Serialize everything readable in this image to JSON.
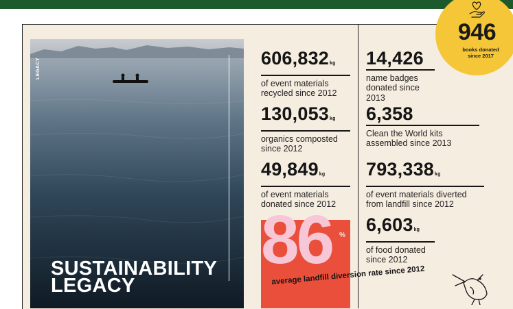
{
  "photo": {
    "side_label": "LEGACY",
    "title_line1": "SUSTAINABILITY",
    "title_line2": "LEGACY"
  },
  "stats_left": [
    {
      "number": "606,832",
      "unit": "kg",
      "desc": [
        "of event materials",
        "recycled since 2012"
      ]
    },
    {
      "number": "130,053",
      "unit": "kg",
      "desc": [
        "organics composted",
        "since 2012"
      ]
    },
    {
      "number": "49,849",
      "unit": "kg",
      "desc": [
        "of event materials",
        "donated since 2012"
      ]
    }
  ],
  "stats_right": [
    {
      "number": "14,426",
      "unit": "",
      "desc": [
        "name badges",
        "donated since 2013"
      ]
    },
    {
      "number": "6,358",
      "unit": "",
      "desc": [
        "Clean the World kits",
        "assembled since 2013"
      ]
    },
    {
      "number": "793,338",
      "unit": "kg",
      "desc": [
        "of event materials diverted",
        "from landfill since 2012"
      ]
    },
    {
      "number": "6,603",
      "unit": "kg",
      "desc": [
        "of food donated",
        "since 2012"
      ]
    }
  ],
  "diversion": {
    "number": "86",
    "percent_sign": "%",
    "caption": "average landfill diversion rate since 2012"
  },
  "badge": {
    "number": "946",
    "line1": "books donated",
    "line2": "since 2017"
  },
  "colors": {
    "top_bar": "#1c5a2e",
    "panel_bg": "#f6ede1",
    "badge_yellow": "#f5c637",
    "pct_red": "#e94f3b",
    "pct_pink": "#f7c7d7"
  }
}
